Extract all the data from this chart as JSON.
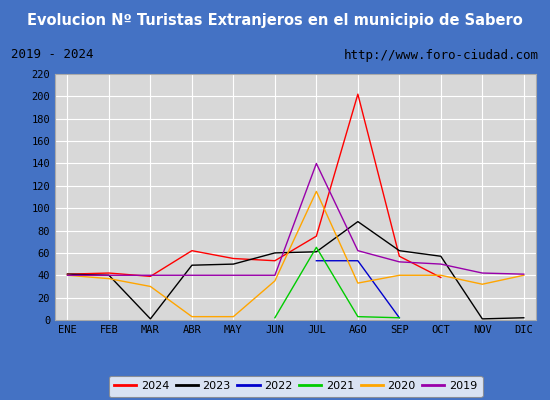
{
  "title": "Evolucion Nº Turistas Extranjeros en el municipio de Sabero",
  "subtitle_left": "2019 - 2024",
  "subtitle_right": "http://www.foro-ciudad.com",
  "title_bg_color": "#4472c4",
  "title_text_color": "#ffffff",
  "subtitle_bg_color": "#ffffff",
  "subtitle_text_color": "#000000",
  "plot_bg_color": "#d8d8d8",
  "grid_color": "#ffffff",
  "border_color": "#4472c4",
  "months": [
    "ENE",
    "FEB",
    "MAR",
    "ABR",
    "MAY",
    "JUN",
    "JUL",
    "AGO",
    "SEP",
    "OCT",
    "NOV",
    "DIC"
  ],
  "ylim": [
    0,
    220
  ],
  "yticks": [
    0,
    20,
    40,
    60,
    80,
    100,
    120,
    140,
    160,
    180,
    200,
    220
  ],
  "series": {
    "2024": {
      "color": "#ff0000",
      "data": [
        41,
        42,
        39,
        62,
        55,
        53,
        75,
        202,
        57,
        38,
        null,
        null
      ]
    },
    "2023": {
      "color": "#000000",
      "data": [
        41,
        40,
        1,
        49,
        50,
        60,
        61,
        88,
        62,
        57,
        1,
        2
      ]
    },
    "2022": {
      "color": "#0000cc",
      "data": [
        null,
        null,
        null,
        null,
        null,
        null,
        53,
        53,
        2,
        null,
        null,
        null
      ]
    },
    "2021": {
      "color": "#00cc00",
      "data": [
        null,
        null,
        null,
        null,
        null,
        2,
        65,
        3,
        2,
        null,
        null,
        null
      ]
    },
    "2020": {
      "color": "#ffa500",
      "data": [
        40,
        37,
        30,
        3,
        3,
        35,
        115,
        33,
        40,
        40,
        32,
        40
      ]
    },
    "2019": {
      "color": "#9900aa",
      "data": [
        40,
        40,
        40,
        40,
        40,
        40,
        140,
        62,
        52,
        50,
        42,
        41
      ]
    }
  },
  "legend_order": [
    "2024",
    "2023",
    "2022",
    "2021",
    "2020",
    "2019"
  ],
  "figsize": [
    5.5,
    4.0
  ],
  "dpi": 100
}
